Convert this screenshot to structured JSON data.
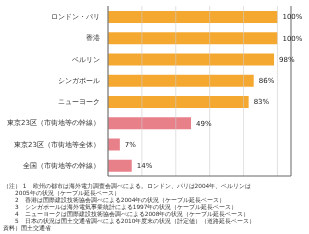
{
  "chart_data": {
    "type": "bar",
    "orientation": "horizontal",
    "categories": [
      "ロンドン・パリ",
      "香港",
      "ベルリン",
      "シンガポール",
      "ニューヨーク",
      "東京23区（市街地等の幹線）",
      "東京23区（市街地等全体）",
      "全国（市街地等の幹線）"
    ],
    "values": [
      100,
      100,
      98,
      86,
      83,
      49,
      7,
      14
    ],
    "value_labels": [
      "100%",
      "100%",
      "98%",
      "86%",
      "83%",
      "49%",
      "7%",
      "14%"
    ],
    "colors": [
      "#f5a830",
      "#f5a830",
      "#f5a830",
      "#f5a830",
      "#f5a830",
      "#e8808a",
      "#e8808a",
      "#e8808a"
    ],
    "xlim": [
      0,
      108
    ],
    "xticks": [
      0,
      20,
      40,
      60,
      80,
      100
    ],
    "grid": true,
    "data_labels": true,
    "tick_labels": "y",
    "annotations": [
      "（注） 1　欧州の都市は海外電力調査会調べによる。ロンドン、パリは2004年、ベルリンは",
      "　　2005年の状況（ケーブル延長ベース）",
      "　　2　香港は国際建設技術協会調べによる2004年の状況（ケーブル延長ベース）",
      "　　3　シンガポールは海外電気事業統計による1997年の状況（ケーブル延長ベース）",
      "　　4　ニューヨークは国際建設技術協会調べによる2008年の状況（ケーブル延長ベース）",
      "　　5　日本の状況は国土交通省調べによる2010年度末の状況（計定値）（道路延長ベース）",
      "資料）国土交通省"
    ]
  }
}
